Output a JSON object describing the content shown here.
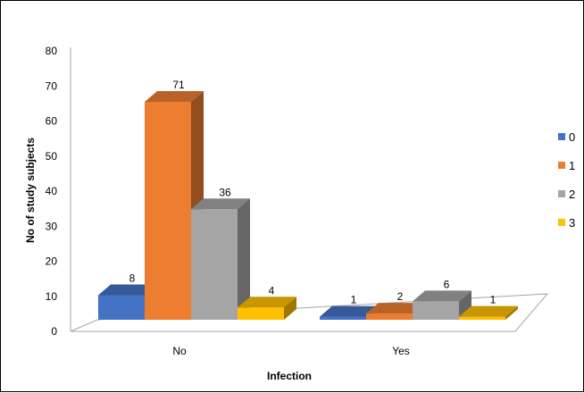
{
  "chart_data": {
    "type": "bar",
    "title": "",
    "xlabel": "Infection",
    "ylabel": "No of study subjects",
    "categories": [
      "No",
      "Yes"
    ],
    "series": [
      {
        "name": "0",
        "values": [
          8,
          1
        ],
        "color": "#4472C4"
      },
      {
        "name": "1",
        "values": [
          71,
          2
        ],
        "color": "#ED7D31"
      },
      {
        "name": "2",
        "values": [
          36,
          6
        ],
        "color": "#A5A5A5"
      },
      {
        "name": "3",
        "values": [
          4,
          1
        ],
        "color": "#FFC000"
      }
    ],
    "yticks": [
      "0",
      "10",
      "20",
      "30",
      "40",
      "50",
      "60",
      "70",
      "80"
    ],
    "ylim": [
      0,
      80
    ],
    "legend_position": "right",
    "style": "3d-clustered-column"
  }
}
